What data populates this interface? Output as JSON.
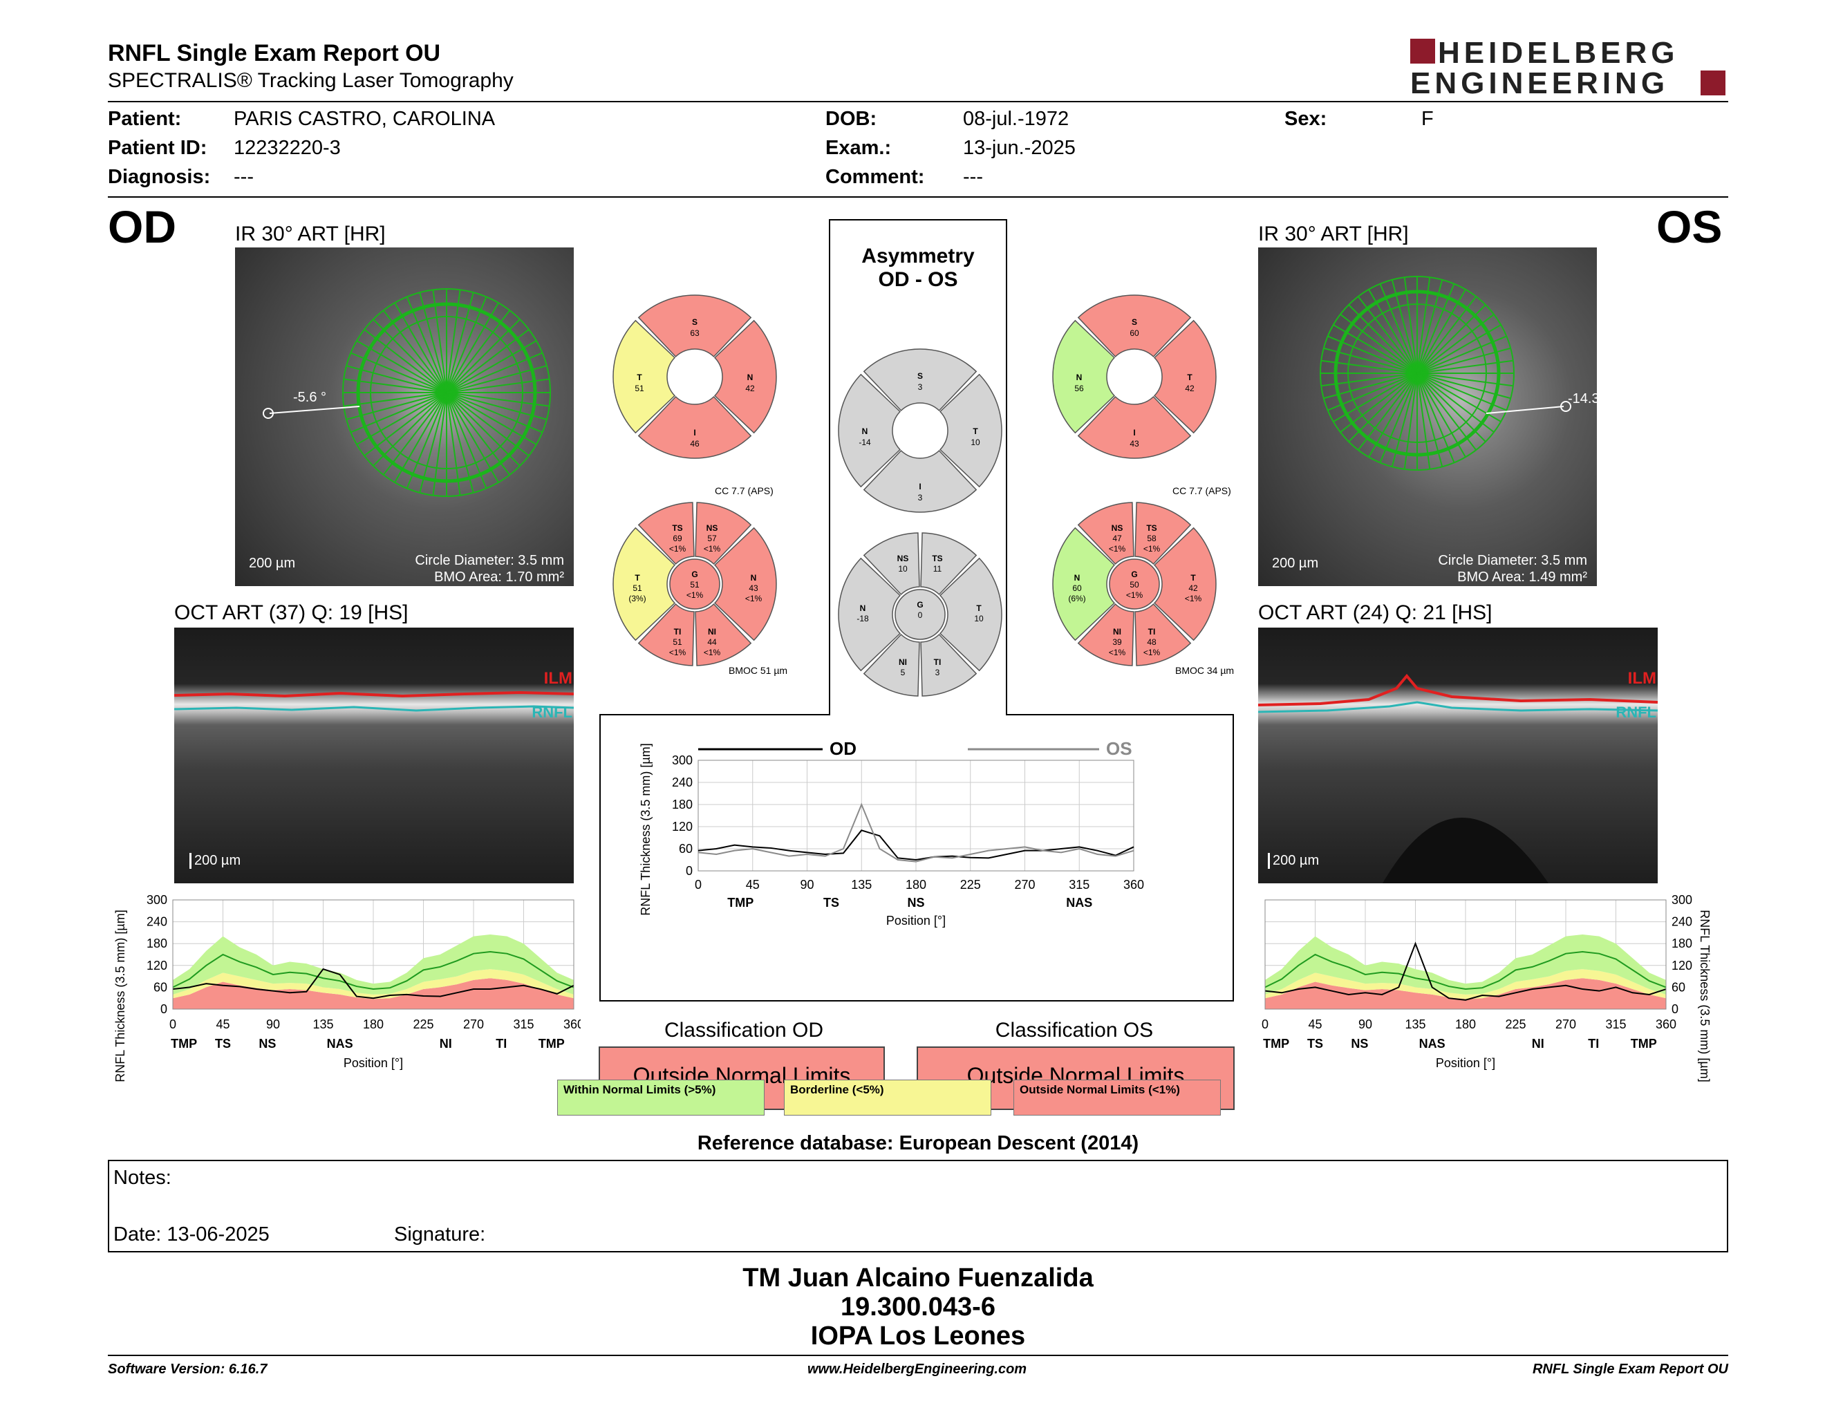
{
  "header": {
    "title": "RNFL Single Exam Report OU",
    "subtitle": "SPECTRALIS® Tracking Laser Tomography",
    "brand_line1": "HEIDELBERG",
    "brand_line2": "ENGINEERING"
  },
  "patient": {
    "patient_label": "Patient:",
    "patient_value": "PARIS CASTRO, CAROLINA",
    "id_label": "Patient ID:",
    "id_value": "12232220-3",
    "diagnosis_label": "Diagnosis:",
    "diagnosis_value": "---",
    "dob_label": "DOB:",
    "dob_value": "08-jul.-1972",
    "exam_label": "Exam.:",
    "exam_value": "13-jun.-2025",
    "comment_label": "Comment:",
    "comment_value": "---",
    "sex_label": "Sex:",
    "sex_value": "F"
  },
  "od": {
    "eye": "OD",
    "ir_title": "IR 30° ART [HR]",
    "angle": "-5.6 °",
    "scale": "200 µm",
    "circle_diameter": "Circle Diameter: 3.5 mm",
    "bmo_area": "BMO Area: 1.70 mm²",
    "oct_title": "OCT ART (37) Q: 19 [HS]",
    "ilm": "ILM",
    "rnfl": "RNFL",
    "oct_scale": "200 µm",
    "cc": "CC 7.7 (APS)",
    "bmoc": "BMOC 51 µm"
  },
  "os": {
    "eye": "OS",
    "ir_title": "IR 30° ART [HR]",
    "angle": "-14.3",
    "scale": "200 µm",
    "circle_diameter": "Circle Diameter: 3.5 mm",
    "bmo_area": "BMO Area: 1.49 mm²",
    "oct_title": "OCT ART (24) Q: 21 [HS]",
    "ilm": "ILM",
    "rnfl": "RNFL",
    "oct_scale": "200 µm",
    "cc": "CC 7.7 (APS)",
    "bmoc": "BMOC 34 µm"
  },
  "asymmetry": {
    "title1": "Asymmetry",
    "title2": "OD - OS"
  },
  "pies": {
    "od4": {
      "s": [
        "S",
        "63"
      ],
      "t": [
        "T",
        "51"
      ],
      "n": [
        "N",
        "42"
      ],
      "i": [
        "I",
        "46"
      ]
    },
    "os4": {
      "s": [
        "S",
        "60"
      ],
      "t": [
        "N",
        "56"
      ],
      "n": [
        "T",
        "42"
      ],
      "i": [
        "I",
        "43"
      ]
    },
    "asym4": {
      "s": [
        "S",
        "3"
      ],
      "t": [
        "N",
        "-14"
      ],
      "n": [
        "T",
        "10"
      ],
      "i": [
        "I",
        "3"
      ]
    },
    "od6": {
      "ts": [
        "TS",
        "69",
        "<1%"
      ],
      "ns": [
        "NS",
        "57",
        "<1%"
      ],
      "t": [
        "T",
        "51",
        "(3%)"
      ],
      "g": [
        "G",
        "51",
        "<1%"
      ],
      "n": [
        "N",
        "43",
        "<1%"
      ],
      "ti": [
        "TI",
        "51",
        "<1%"
      ],
      "ni": [
        "NI",
        "44",
        "<1%"
      ]
    },
    "os6": {
      "ts": [
        "NS",
        "47",
        "<1%"
      ],
      "ns": [
        "TS",
        "58",
        "<1%"
      ],
      "t": [
        "N",
        "60",
        "(6%)"
      ],
      "g": [
        "G",
        "50",
        "<1%"
      ],
      "n": [
        "T",
        "42",
        "<1%"
      ],
      "ti": [
        "NI",
        "39",
        "<1%"
      ],
      "ni": [
        "TI",
        "48",
        "<1%"
      ]
    },
    "asym6": {
      "ts": [
        "NS",
        "10"
      ],
      "ns": [
        "TS",
        "11"
      ],
      "t": [
        "N",
        "-18"
      ],
      "g": [
        "G",
        "0"
      ],
      "n": [
        "T",
        "10"
      ],
      "ti": [
        "NI",
        "5"
      ],
      "ni": [
        "TI",
        "3"
      ]
    }
  },
  "charts": {
    "ylabel": "RNFL Thickness (3.5 mm) [µm]",
    "xlabel": "Position [°]",
    "yticks": [
      "300",
      "240",
      "180",
      "120",
      "60",
      "0"
    ],
    "center_yticks": [
      "300",
      "240",
      "180",
      "120",
      "60",
      "0"
    ],
    "xticks": [
      "0",
      "45",
      "90",
      "135",
      "180",
      "225",
      "270",
      "315",
      "360"
    ],
    "sectors": [
      "TMP",
      "TS",
      "NS",
      "NAS",
      "NI",
      "TI",
      "TMP"
    ],
    "legend_od": "OD",
    "legend_os": "OS"
  },
  "chart_data": [
    {
      "type": "line",
      "title": "",
      "xlabel": "Position [°]",
      "ylabel": "RNFL Thickness (3.5 mm) [µm]",
      "xlim": [
        0,
        360
      ],
      "ylim": [
        0,
        300
      ],
      "series": [
        {
          "name": "OD",
          "x": [
            0,
            15,
            30,
            45,
            60,
            75,
            90,
            105,
            120,
            135,
            150,
            165,
            180,
            195,
            210,
            225,
            240,
            255,
            270,
            285,
            300,
            315,
            330,
            345,
            360
          ],
          "values": [
            55,
            60,
            70,
            65,
            62,
            55,
            50,
            45,
            48,
            110,
            95,
            35,
            30,
            38,
            40,
            36,
            35,
            45,
            55,
            55,
            60,
            65,
            55,
            42,
            65
          ]
        },
        {
          "name": "OS",
          "x": [
            0,
            15,
            30,
            45,
            60,
            75,
            90,
            105,
            120,
            135,
            150,
            165,
            180,
            195,
            210,
            225,
            240,
            255,
            270,
            285,
            300,
            315,
            330,
            345,
            360
          ],
          "values": [
            50,
            45,
            55,
            60,
            50,
            40,
            45,
            40,
            60,
            180,
            60,
            30,
            25,
            38,
            35,
            45,
            55,
            60,
            65,
            55,
            50,
            60,
            45,
            40,
            55
          ]
        }
      ]
    }
  ],
  "classification": {
    "od_title": "Classification OD",
    "od_value": "Outside Normal Limits",
    "os_title": "Classification OS",
    "os_value": "Outside Normal Limits",
    "legend_within": "Within Normal Limits (>5%)",
    "legend_borderline": "Borderline (<5%)",
    "legend_outside": "Outside Normal Limits (<1%)",
    "reference": "Reference database: European Descent (2014)"
  },
  "notes": {
    "notes_label": "Notes:",
    "date_label": "Date: 13-06-2025",
    "signature_label": "Signature:"
  },
  "signature": {
    "name": "TM Juan Alcaino Fuenzalida",
    "id": "19.300.043-6",
    "place": "IOPA Los Leones"
  },
  "footer": {
    "software": "Software Version: 6.16.7",
    "website": "www.HeidelbergEngineering.com",
    "report": "RNFL Single Exam Report OU"
  },
  "colors": {
    "red": "#f7918a",
    "yellow": "#f7f694",
    "green": "#c2f594",
    "gray": "#d4d4d4",
    "brand": "#8d1b2b"
  }
}
